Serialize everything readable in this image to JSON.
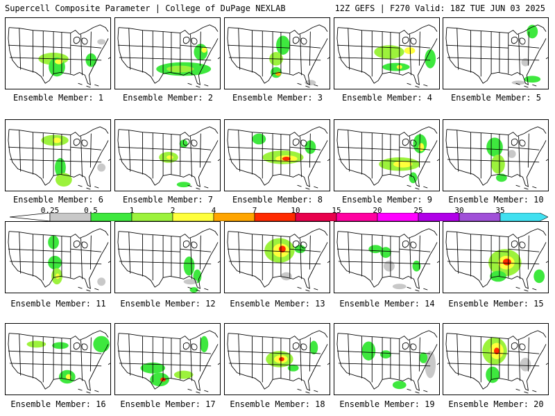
{
  "header": {
    "left_title": "Supercell Composite Parameter | College of DuPage NEXLAB",
    "right_title": "12Z GEFS | F270 Valid: 18Z TUE JUN 03 2025"
  },
  "colorbar": {
    "labels": [
      "0.25",
      "0.5",
      "1",
      "2",
      "4",
      "7",
      "10",
      "15",
      "20",
      "25",
      "30",
      "35"
    ],
    "colors": [
      "#c8c8c8",
      "#3ee83e",
      "#9cf23c",
      "#ffff3c",
      "#ffa500",
      "#ff2a00",
      "#e8004c",
      "#ff00a0",
      "#ff00ff",
      "#b000e8",
      "#a050d8",
      "#40e0f0"
    ]
  },
  "panels": [
    {
      "label": "Ensemble Member: 1",
      "blobs": [
        [
          70,
          60,
          22,
          9,
          "#9cf23c"
        ],
        [
          75,
          72,
          12,
          14,
          "#3ee83e"
        ],
        [
          78,
          64,
          6,
          4,
          "#ffff3c"
        ],
        [
          125,
          62,
          8,
          10,
          "#3ee83e"
        ],
        [
          140,
          35,
          6,
          4,
          "#c8c8c8"
        ]
      ]
    },
    {
      "label": "Ensemble Member: 2",
      "blobs": [
        [
          100,
          75,
          40,
          10,
          "#3ee83e"
        ],
        [
          95,
          75,
          20,
          5,
          "#9cf23c"
        ],
        [
          125,
          50,
          10,
          12,
          "#3ee83e"
        ],
        [
          130,
          47,
          4,
          4,
          "#ffff3c"
        ]
      ]
    },
    {
      "label": "Ensemble Member: 3",
      "blobs": [
        [
          85,
          40,
          10,
          14,
          "#3ee83e"
        ],
        [
          75,
          60,
          10,
          10,
          "#9cf23c"
        ],
        [
          75,
          80,
          8,
          8,
          "#3ee83e"
        ],
        [
          78,
          82,
          4,
          3,
          "#ffa500"
        ],
        [
          125,
          95,
          8,
          4,
          "#c8c8c8"
        ]
      ]
    },
    {
      "label": "Ensemble Member: 4",
      "blobs": [
        [
          80,
          50,
          22,
          10,
          "#9cf23c"
        ],
        [
          90,
          72,
          20,
          6,
          "#3ee83e"
        ],
        [
          110,
          48,
          8,
          5,
          "#ffff3c"
        ],
        [
          140,
          60,
          8,
          14,
          "#3ee83e"
        ],
        [
          95,
          72,
          4,
          3,
          "#ffff3c"
        ]
      ]
    },
    {
      "label": "Ensemble Member: 5",
      "blobs": [
        [
          130,
          20,
          8,
          10,
          "#3ee83e"
        ],
        [
          120,
          65,
          6,
          6,
          "#c8c8c8"
        ],
        [
          130,
          90,
          12,
          5,
          "#3ee83e"
        ],
        [
          110,
          95,
          10,
          3,
          "#c8c8c8"
        ]
      ]
    },
    {
      "label": "Ensemble Member: 6",
      "blobs": [
        [
          72,
          30,
          20,
          8,
          "#9cf23c"
        ],
        [
          75,
          30,
          6,
          4,
          "#ffff3c"
        ],
        [
          80,
          70,
          8,
          14,
          "#3ee83e"
        ],
        [
          85,
          88,
          12,
          10,
          "#9cf23c"
        ],
        [
          140,
          70,
          6,
          6,
          "#c8c8c8"
        ]
      ]
    },
    {
      "label": "Ensemble Member: 7",
      "blobs": [
        [
          78,
          55,
          14,
          8,
          "#9cf23c"
        ],
        [
          80,
          55,
          5,
          3,
          "#ffff3c"
        ],
        [
          100,
          35,
          6,
          6,
          "#3ee83e"
        ],
        [
          100,
          95,
          10,
          4,
          "#3ee83e"
        ]
      ]
    },
    {
      "label": "Ensemble Member: 8",
      "blobs": [
        [
          85,
          55,
          30,
          10,
          "#9cf23c"
        ],
        [
          90,
          57,
          16,
          5,
          "#ffff3c"
        ],
        [
          90,
          57,
          6,
          3,
          "#ff2a00"
        ],
        [
          50,
          28,
          10,
          8,
          "#3ee83e"
        ],
        [
          125,
          40,
          8,
          10,
          "#3ee83e"
        ]
      ]
    },
    {
      "label": "Ensemble Member: 9",
      "blobs": [
        [
          95,
          65,
          30,
          10,
          "#9cf23c"
        ],
        [
          100,
          65,
          14,
          5,
          "#ffff3c"
        ],
        [
          125,
          35,
          10,
          14,
          "#3ee83e"
        ],
        [
          127,
          40,
          4,
          6,
          "#ffff3c"
        ],
        [
          115,
          85,
          6,
          8,
          "#3ee83e"
        ]
      ]
    },
    {
      "label": "Ensemble Member: 10",
      "blobs": [
        [
          75,
          40,
          12,
          14,
          "#3ee83e"
        ],
        [
          80,
          65,
          10,
          14,
          "#9cf23c"
        ],
        [
          85,
          85,
          8,
          6,
          "#3ee83e"
        ],
        [
          100,
          50,
          6,
          6,
          "#c8c8c8"
        ]
      ]
    },
    {
      "label": "Ensemble Member: 11",
      "blobs": [
        [
          70,
          30,
          8,
          10,
          "#3ee83e"
        ],
        [
          72,
          60,
          10,
          10,
          "#3ee83e"
        ],
        [
          75,
          80,
          8,
          12,
          "#9cf23c"
        ],
        [
          76,
          80,
          3,
          4,
          "#ffff3c"
        ],
        [
          140,
          88,
          6,
          6,
          "#c8c8c8"
        ]
      ]
    },
    {
      "label": "Ensemble Member: 12",
      "blobs": [
        [
          108,
          65,
          8,
          14,
          "#3ee83e"
        ],
        [
          120,
          80,
          6,
          10,
          "#3ee83e"
        ],
        [
          115,
          100,
          6,
          4,
          "#3ee83e"
        ],
        [
          110,
          88,
          10,
          4,
          "#c8c8c8"
        ]
      ]
    },
    {
      "label": "Ensemble Member: 13",
      "blobs": [
        [
          80,
          42,
          22,
          18,
          "#9cf23c"
        ],
        [
          82,
          42,
          12,
          10,
          "#ffff3c"
        ],
        [
          84,
          40,
          5,
          5,
          "#ff2a00"
        ],
        [
          110,
          40,
          8,
          6,
          "#3ee83e"
        ],
        [
          90,
          80,
          8,
          6,
          "#c8c8c8"
        ]
      ]
    },
    {
      "label": "Ensemble Member: 14",
      "blobs": [
        [
          60,
          40,
          10,
          6,
          "#3ee83e"
        ],
        [
          75,
          45,
          8,
          8,
          "#3ee83e"
        ],
        [
          80,
          65,
          8,
          8,
          "#c8c8c8"
        ],
        [
          120,
          65,
          6,
          8,
          "#3ee83e"
        ],
        [
          95,
          95,
          10,
          4,
          "#c8c8c8"
        ]
      ]
    },
    {
      "label": "Ensemble Member: 15",
      "blobs": [
        [
          90,
          60,
          24,
          20,
          "#9cf23c"
        ],
        [
          92,
          60,
          12,
          10,
          "#ffff3c"
        ],
        [
          93,
          59,
          6,
          5,
          "#ff2a00"
        ],
        [
          80,
          80,
          12,
          8,
          "#3ee83e"
        ],
        [
          140,
          80,
          8,
          10,
          "#3ee83e"
        ]
      ]
    },
    {
      "label": "Ensemble Member: 16",
      "blobs": [
        [
          45,
          30,
          14,
          5,
          "#9cf23c"
        ],
        [
          80,
          32,
          12,
          5,
          "#3ee83e"
        ],
        [
          90,
          78,
          12,
          10,
          "#3ee83e"
        ],
        [
          92,
          78,
          4,
          4,
          "#ffff3c"
        ],
        [
          140,
          30,
          12,
          12,
          "#3ee83e"
        ]
      ]
    },
    {
      "label": "Ensemble Member: 17",
      "blobs": [
        [
          55,
          65,
          18,
          8,
          "#3ee83e"
        ],
        [
          65,
          82,
          14,
          10,
          "#3ee83e"
        ],
        [
          70,
          82,
          4,
          3,
          "#ff2a00"
        ],
        [
          100,
          75,
          14,
          6,
          "#9cf23c"
        ],
        [
          130,
          30,
          6,
          12,
          "#3ee83e"
        ]
      ]
    },
    {
      "label": "Ensemble Member: 18",
      "blobs": [
        [
          80,
          52,
          20,
          12,
          "#9cf23c"
        ],
        [
          82,
          52,
          10,
          6,
          "#ffff3c"
        ],
        [
          83,
          52,
          4,
          3,
          "#ff2a00"
        ],
        [
          130,
          35,
          6,
          10,
          "#3ee83e"
        ],
        [
          100,
          65,
          8,
          5,
          "#3ee83e"
        ]
      ]
    },
    {
      "label": "Ensemble Member: 19",
      "blobs": [
        [
          50,
          40,
          10,
          14,
          "#3ee83e"
        ],
        [
          75,
          45,
          8,
          6,
          "#3ee83e"
        ],
        [
          95,
          90,
          10,
          6,
          "#3ee83e"
        ],
        [
          140,
          60,
          8,
          20,
          "#c8c8c8"
        ],
        [
          130,
          50,
          6,
          8,
          "#3ee83e"
        ]
      ]
    },
    {
      "label": "Ensemble Member: 20",
      "blobs": [
        [
          75,
          40,
          18,
          20,
          "#9cf23c"
        ],
        [
          78,
          40,
          10,
          12,
          "#ffff3c"
        ],
        [
          78,
          40,
          4,
          5,
          "#ff2a00"
        ],
        [
          72,
          75,
          10,
          12,
          "#3ee83e"
        ],
        [
          120,
          60,
          8,
          10,
          "#c8c8c8"
        ]
      ]
    }
  ]
}
